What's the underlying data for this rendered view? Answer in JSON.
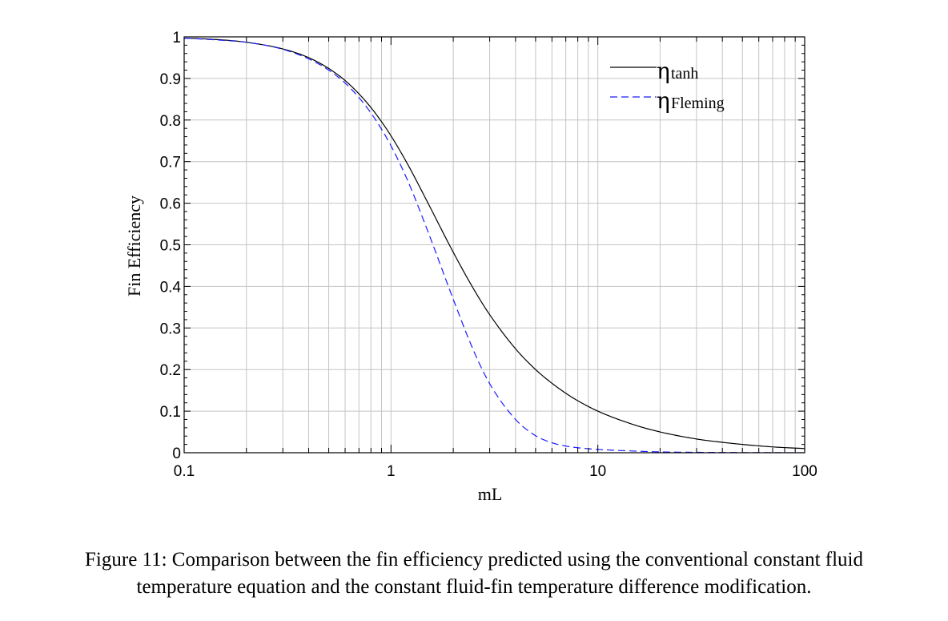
{
  "caption": {
    "line1": "Figure 11: Comparison between the fin efficiency predicted using the conventional constant fluid",
    "line2": "temperature equation and the constant fluid-fin temperature difference modification."
  },
  "chart_data": {
    "type": "line",
    "xscale": "log",
    "xlim": [
      0.1,
      100
    ],
    "ylim": [
      0,
      1
    ],
    "xlabel": "mL",
    "ylabel": "Fin Efficiency",
    "xticks": [
      "0.1",
      "1",
      "10",
      "100"
    ],
    "yticks": [
      "0",
      "0.1",
      "0.2",
      "0.3",
      "0.4",
      "0.5",
      "0.6",
      "0.7",
      "0.8",
      "0.9",
      "1"
    ],
    "grid": true,
    "legend_position": "top-right",
    "x": [
      0.1,
      0.15,
      0.2,
      0.3,
      0.4,
      0.5,
      0.6,
      0.7,
      0.8,
      0.9,
      1,
      1.2,
      1.5,
      2,
      2.5,
      3,
      4,
      5,
      6,
      7,
      8,
      10,
      15,
      20,
      30,
      40,
      50,
      70,
      100
    ],
    "series": [
      {
        "name": "tanh",
        "color": "#000000",
        "dash": "solid",
        "values": [
          0.997,
          0.993,
          0.987,
          0.971,
          0.95,
          0.924,
          0.895,
          0.863,
          0.83,
          0.796,
          0.762,
          0.695,
          0.603,
          0.482,
          0.395,
          0.332,
          0.25,
          0.2,
          0.167,
          0.143,
          0.125,
          0.1,
          0.067,
          0.05,
          0.033,
          0.025,
          0.02,
          0.014,
          0.01
        ]
      },
      {
        "name": "Fleming",
        "color": "#1a1aff",
        "dash": "dashed",
        "values": [
          0.997,
          0.992,
          0.987,
          0.97,
          0.947,
          0.92,
          0.889,
          0.854,
          0.817,
          0.778,
          0.738,
          0.656,
          0.535,
          0.369,
          0.247,
          0.166,
          0.08,
          0.041,
          0.024,
          0.016,
          0.012,
          0.008,
          0.004,
          0.002,
          0.001,
          0.0006,
          0.0004,
          0.0002,
          0.0001
        ]
      }
    ]
  }
}
